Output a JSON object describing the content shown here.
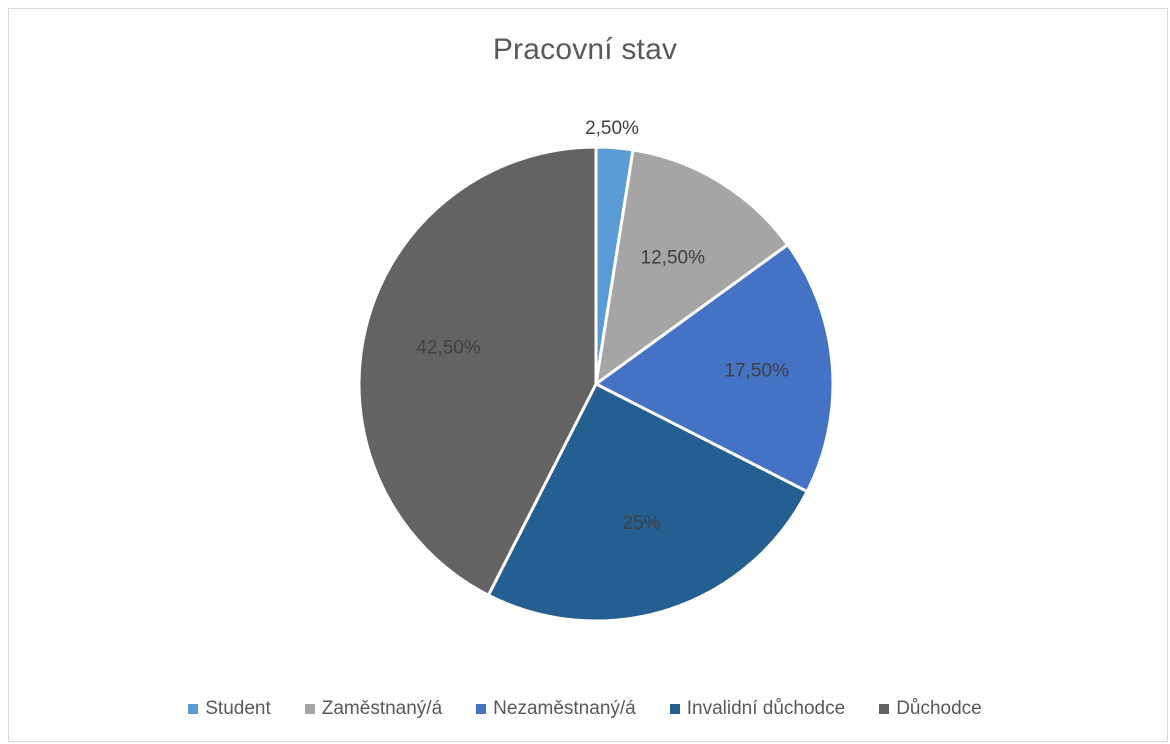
{
  "chart_data": {
    "type": "pie",
    "title": "Pracovní stav",
    "categories": [
      "Student",
      "Zaměstnaný/á",
      "Nezaměstnaný/á",
      "Invalidní důchodce",
      "Důchodce"
    ],
    "values": [
      2.5,
      12.5,
      17.5,
      25,
      42.5
    ],
    "labels": [
      "2,50%",
      "12,50%",
      "17,50%",
      "25%",
      "42,50%"
    ],
    "colors": [
      "#5b9bd5",
      "#a5a5a5",
      "#4472c4",
      "#255e91",
      "#636363"
    ],
    "legend_position": "bottom"
  }
}
